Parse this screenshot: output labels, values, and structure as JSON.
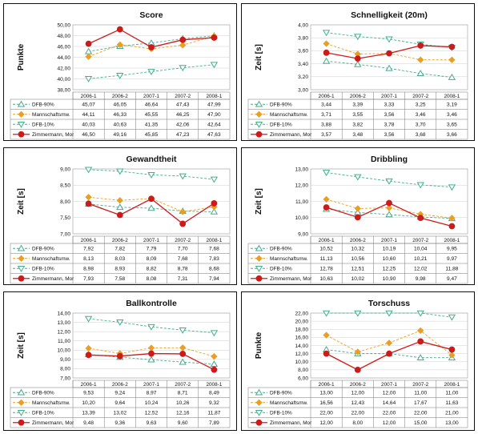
{
  "chart_data": [
    {
      "type": "line",
      "title": "Score",
      "ylabel": "Punkte",
      "categories": [
        "2006-1",
        "2006-2",
        "2007-1",
        "2007-2",
        "2008-1"
      ],
      "ylim": [
        38,
        50
      ],
      "yticks": [
        "38,00",
        "40,00",
        "42,00",
        "44,00",
        "46,00",
        "48,00",
        "50,00"
      ],
      "series": [
        {
          "name": "DFB-90%",
          "values": [
            "45,07",
            "46,05",
            "46,64",
            "47,43",
            "47,99"
          ]
        },
        {
          "name": "Mannschaftsmw.",
          "values": [
            "44,11",
            "46,33",
            "45,55",
            "46,25",
            "47,90"
          ]
        },
        {
          "name": "DFB-10%",
          "values": [
            "40,03",
            "40,63",
            "41,35",
            "42,06",
            "42,64"
          ]
        },
        {
          "name": "Zimmermann, Mor",
          "values": [
            "46,50",
            "49,16",
            "45,85",
            "47,23",
            "47,63"
          ]
        }
      ]
    },
    {
      "type": "line",
      "title": "Schnelligkeit (20m)",
      "ylabel": "Zeit [s]",
      "categories": [
        "2006-1",
        "2006-2",
        "2007-1",
        "2007-2",
        "2008-1"
      ],
      "ylim": [
        3.0,
        4.0
      ],
      "yticks": [
        "3,00",
        "3,20",
        "3,40",
        "3,60",
        "3,80",
        "4,00"
      ],
      "series": [
        {
          "name": "DFB-90%",
          "values": [
            "3,44",
            "3,39",
            "3,33",
            "3,25",
            "3,19"
          ]
        },
        {
          "name": "Mannschaftsmw.",
          "values": [
            "3,71",
            "3,55",
            "3,56",
            "3,46",
            "3,46"
          ]
        },
        {
          "name": "DFB-10%",
          "values": [
            "3,88",
            "3,82",
            "3,78",
            "3,70",
            "3,65"
          ]
        },
        {
          "name": "Zimmermann, Mor",
          "values": [
            "3,57",
            "3,48",
            "3,56",
            "3,68",
            "3,66"
          ]
        }
      ]
    },
    {
      "type": "line",
      "title": "Gewandtheit",
      "ylabel": "Zeit [s]",
      "categories": [
        "2006-1",
        "2006-2",
        "2007-1",
        "2007-2",
        "2008-1"
      ],
      "ylim": [
        7.0,
        9.0
      ],
      "yticks": [
        "7,00",
        "7,50",
        "8,00",
        "8,50",
        "9,00"
      ],
      "series": [
        {
          "name": "DFB-90%",
          "values": [
            "7,92",
            "7,82",
            "7,79",
            "7,70",
            "7,68"
          ]
        },
        {
          "name": "Mannschaftsmw.",
          "values": [
            "8,13",
            "8,03",
            "8,09",
            "7,68",
            "7,83"
          ]
        },
        {
          "name": "DFB-10%",
          "values": [
            "8,98",
            "8,93",
            "8,82",
            "8,78",
            "8,68"
          ]
        },
        {
          "name": "Zimmermann, Mor",
          "values": [
            "7,93",
            "7,58",
            "8,08",
            "7,31",
            "7,94"
          ]
        }
      ]
    },
    {
      "type": "line",
      "title": "Dribbling",
      "ylabel": "Zeit [s]",
      "categories": [
        "2006-1",
        "2006-2",
        "2007-1",
        "2007-2",
        "2008-1"
      ],
      "ylim": [
        9.0,
        13.0
      ],
      "yticks": [
        "9,00",
        "10,00",
        "11,00",
        "12,00",
        "13,00"
      ],
      "series": [
        {
          "name": "DFB-90%",
          "values": [
            "10,52",
            "10,32",
            "10,19",
            "10,04",
            "9,95"
          ]
        },
        {
          "name": "Mannschaftsmw.",
          "values": [
            "11,13",
            "10,56",
            "10,60",
            "10,21",
            "9,97"
          ]
        },
        {
          "name": "DFB-10%",
          "values": [
            "12,78",
            "12,51",
            "12,25",
            "12,02",
            "11,88"
          ]
        },
        {
          "name": "Zimmermann, Mor",
          "values": [
            "10,63",
            "10,02",
            "10,90",
            "9,98",
            "9,47"
          ]
        }
      ]
    },
    {
      "type": "line",
      "title": "Ballkontrolle",
      "ylabel": "Zeit [s]",
      "categories": [
        "2006-1",
        "2006-2",
        "2007-1",
        "2007-2",
        "2008-1"
      ],
      "ylim": [
        7.0,
        14.0
      ],
      "yticks": [
        "7,00",
        "8,00",
        "9,00",
        "10,00",
        "11,00",
        "12,00",
        "13,00",
        "14,00"
      ],
      "series": [
        {
          "name": "DFB-90%",
          "values": [
            "9,53",
            "9,24",
            "8,97",
            "8,71",
            "8,49"
          ]
        },
        {
          "name": "Mannschaftsmw.",
          "values": [
            "10,20",
            "9,64",
            "10,24",
            "10,26",
            "9,32"
          ]
        },
        {
          "name": "DFB-10%",
          "values": [
            "13,39",
            "13,02",
            "12,52",
            "12,16",
            "11,87"
          ]
        },
        {
          "name": "Zimmermann, Mor",
          "values": [
            "9,48",
            "9,36",
            "9,63",
            "9,60",
            "7,89"
          ]
        }
      ]
    },
    {
      "type": "line",
      "title": "Torschuss",
      "ylabel": "Punkte",
      "categories": [
        "2006-1",
        "2006-2",
        "2007-1",
        "2007-2",
        "2008-1"
      ],
      "ylim": [
        6.0,
        22.0
      ],
      "yticks": [
        "6,00",
        "8,00",
        "10,00",
        "12,00",
        "14,00",
        "16,00",
        "18,00",
        "20,00",
        "22,00"
      ],
      "series": [
        {
          "name": "DFB-90%",
          "values": [
            "13,00",
            "12,00",
            "12,00",
            "11,00",
            "11,00"
          ]
        },
        {
          "name": "Mannschaftsmw.",
          "values": [
            "16,56",
            "12,43",
            "14,64",
            "17,67",
            "11,63"
          ]
        },
        {
          "name": "DFB-10%",
          "values": [
            "22,00",
            "22,00",
            "22,00",
            "22,00",
            "21,00"
          ]
        },
        {
          "name": "Zimmermann, Mor",
          "values": [
            "12,00",
            "8,00",
            "12,00",
            "15,00",
            "13,00"
          ]
        }
      ]
    }
  ],
  "styles": [
    {
      "color": "#4aa88e",
      "dash": true,
      "marker": "triangle-up"
    },
    {
      "color": "#e8a024",
      "dash": true,
      "marker": "diamond"
    },
    {
      "color": "#3fb08c",
      "dash": true,
      "marker": "triangle-down"
    },
    {
      "color": "#cc1b1b",
      "dash": false,
      "marker": "circle"
    }
  ]
}
